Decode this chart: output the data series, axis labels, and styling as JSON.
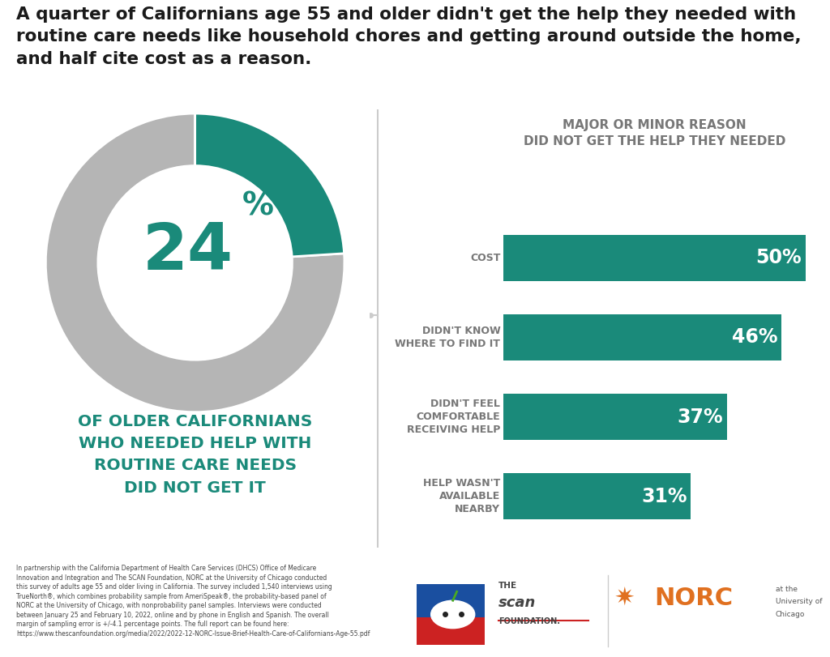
{
  "title_line1": "A quarter of Californians age 55 and older didn't get the help they needed with",
  "title_line2": "routine care needs like household chores and getting around outside the home,",
  "title_line3": "and half cite cost as a reason.",
  "donut_value": 24,
  "donut_remainder": 76,
  "donut_teal": "#1a8a7a",
  "donut_gray": "#b5b5b5",
  "donut_center_color": "#1a8a7a",
  "donut_subtext_line1": "OF OLDER CALIFORNIANS",
  "donut_subtext_line2": "WHO NEEDED HELP WITH",
  "donut_subtext_line3": "ROUTINE CARE NEEDS",
  "donut_subtext_line4": "DID NOT GET IT",
  "donut_subtext_color": "#1a8a7a",
  "bar_title_line1": "MAJOR OR MINOR REASON",
  "bar_title_line2": "DID NOT GET THE HELP THEY NEEDED",
  "bar_title_color": "#777777",
  "bar_categories": [
    "COST",
    "DIDN'T KNOW\nWHERE TO FIND IT",
    "DIDN'T FEEL\nCOMFORTABLE\nRECEIVING HELP",
    "HELP WASN'T\nAVAILABLE\nNEARBY"
  ],
  "bar_values": [
    50,
    46,
    37,
    31
  ],
  "bar_color": "#1a8a7a",
  "bar_text_color": "#ffffff",
  "background_color": "#ffffff",
  "footer_text": "In partnership with the California Department of Health Care Services (DHCS) Office of Medicare\nInnovation and Integration and The SCAN Foundation, NORC at the University of Chicago conducted\nthis survey of adults age 55 and older living in California. The survey included 1,540 interviews using\nTrueNorth®, which combines probability sample from AmeriSpeak®, the probability-based panel of\nNORC at the University of Chicago, with nonprobability panel samples. Interviews were conducted\nbetween January 25 and February 10, 2022, online and by phone in English and Spanish. The overall\nmargin of sampling error is +/-4.1 percentage points. The full report can be found here:\nhttps://www.thescanfoundation.org/media/2022/2022-12-NORC-Issue-Brief-Health-Care-of-Californians-Age-55.pdf",
  "connector_color": "#cccccc",
  "norc_color": "#e07020",
  "scan_blue": "#1a4fa0",
  "scan_red": "#cc2222"
}
